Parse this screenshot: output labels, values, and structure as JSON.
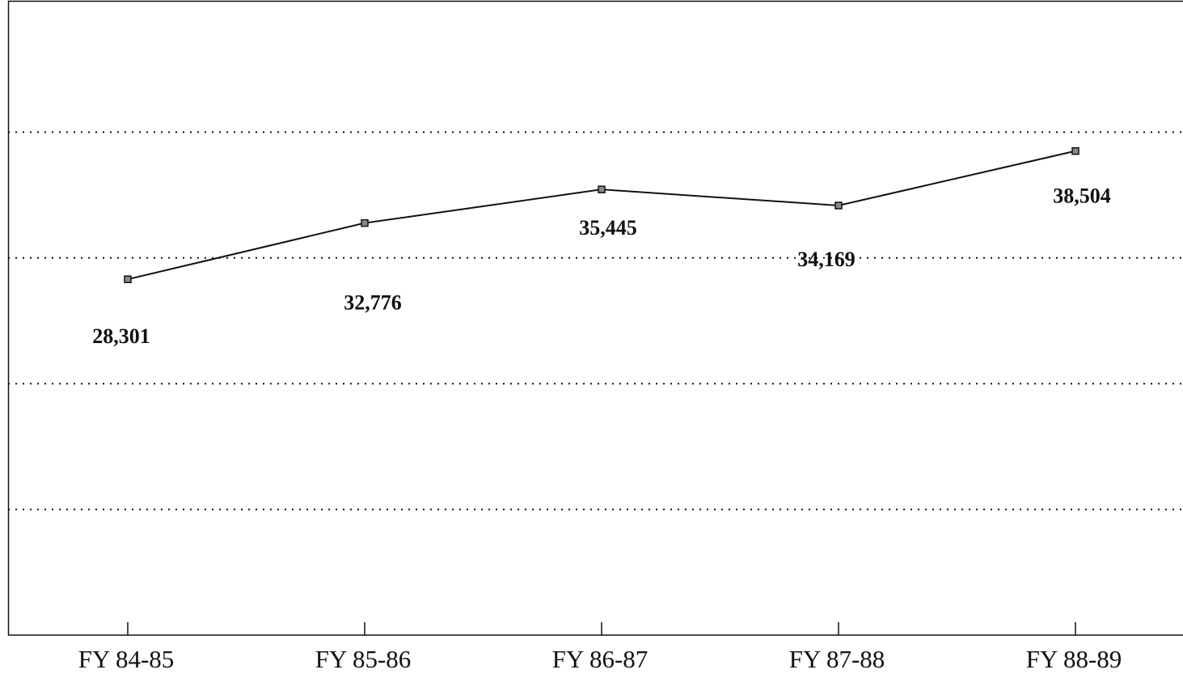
{
  "chart_data": {
    "type": "line",
    "categories": [
      "FY 84-85",
      "FY 85-86",
      "FY 86-87",
      "FY 87-88",
      "FY 88-89"
    ],
    "series": [
      {
        "color": "#111111",
        "values": [
          28301,
          32776,
          35445,
          34169,
          38504
        ],
        "value_labels": [
          "28,301",
          "32,776",
          "35,445",
          "34,169",
          "38,504"
        ]
      }
    ],
    "ylim": [
      0,
      50000
    ],
    "yticks": [
      10000,
      20000,
      30000,
      40000
    ],
    "grid": true
  }
}
